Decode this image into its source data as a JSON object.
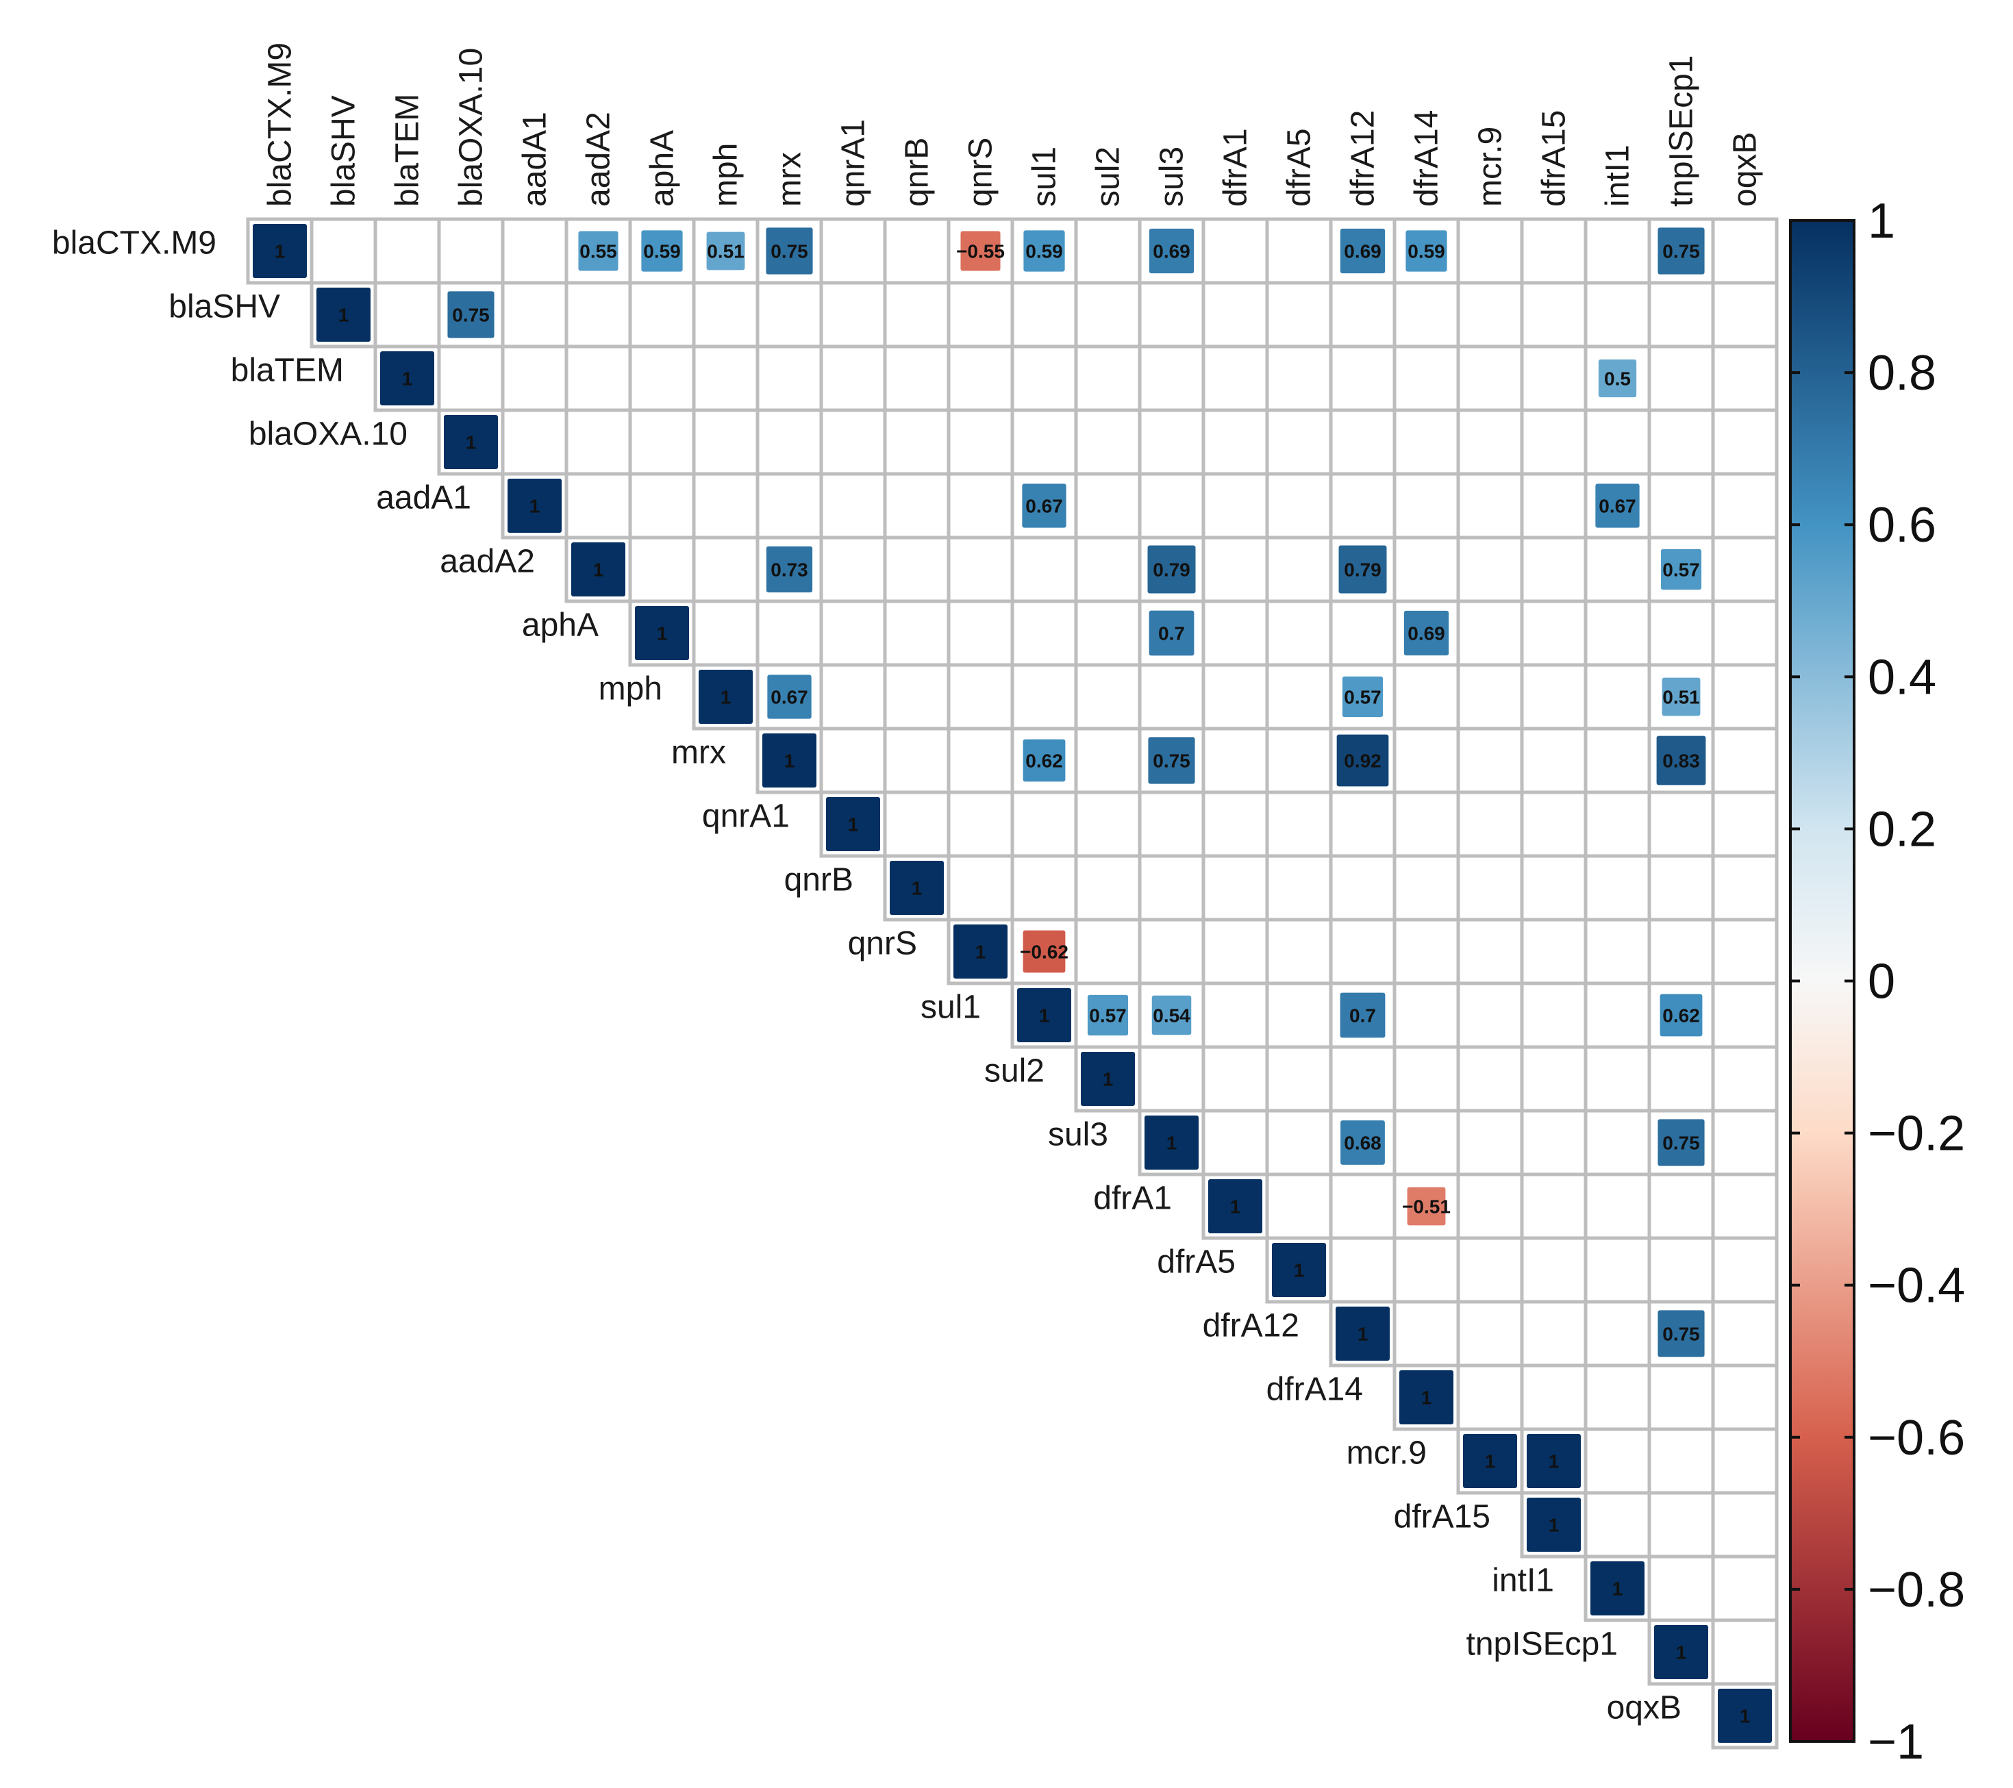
{
  "chart_data": {
    "type": "heatmap",
    "subtype": "correlation-matrix-upper",
    "title": "",
    "labels": [
      "blaCTX.M9",
      "blaSHV",
      "blaTEM",
      "blaOXA.10",
      "aadA1",
      "aadA2",
      "aphA",
      "mph",
      "mrx",
      "qnrA1",
      "qnrB",
      "qnrS",
      "sul1",
      "sul2",
      "sul3",
      "dfrA1",
      "dfrA5",
      "dfrA12",
      "dfrA14",
      "mcr.9",
      "dfrA15",
      "intI1",
      "tnpISEcp1",
      "oqxB"
    ],
    "cells": [
      {
        "row": "blaCTX.M9",
        "col": "blaCTX.M9",
        "value": 1,
        "label": "1"
      },
      {
        "row": "blaCTX.M9",
        "col": "aadA2",
        "value": 0.55,
        "label": "0.55"
      },
      {
        "row": "blaCTX.M9",
        "col": "aphA",
        "value": 0.59,
        "label": "0.59"
      },
      {
        "row": "blaCTX.M9",
        "col": "mph",
        "value": 0.51,
        "label": "0.51"
      },
      {
        "row": "blaCTX.M9",
        "col": "mrx",
        "value": 0.75,
        "label": "0.75"
      },
      {
        "row": "blaCTX.M9",
        "col": "qnrS",
        "value": -0.55,
        "label": "−0.55"
      },
      {
        "row": "blaCTX.M9",
        "col": "sul1",
        "value": 0.59,
        "label": "0.59"
      },
      {
        "row": "blaCTX.M9",
        "col": "sul3",
        "value": 0.69,
        "label": "0.69"
      },
      {
        "row": "blaCTX.M9",
        "col": "dfrA12",
        "value": 0.69,
        "label": "0.69"
      },
      {
        "row": "blaCTX.M9",
        "col": "dfrA14",
        "value": 0.59,
        "label": "0.59"
      },
      {
        "row": "blaCTX.M9",
        "col": "tnpISEcp1",
        "value": 0.75,
        "label": "0.75"
      },
      {
        "row": "blaSHV",
        "col": "blaSHV",
        "value": 1,
        "label": "1"
      },
      {
        "row": "blaSHV",
        "col": "blaOXA.10",
        "value": 0.75,
        "label": "0.75"
      },
      {
        "row": "blaTEM",
        "col": "blaTEM",
        "value": 1,
        "label": "1"
      },
      {
        "row": "blaTEM",
        "col": "intI1",
        "value": 0.5,
        "label": "0.5"
      },
      {
        "row": "blaOXA.10",
        "col": "blaOXA.10",
        "value": 1,
        "label": "1"
      },
      {
        "row": "aadA1",
        "col": "aadA1",
        "value": 1,
        "label": "1"
      },
      {
        "row": "aadA1",
        "col": "sul1",
        "value": 0.67,
        "label": "0.67"
      },
      {
        "row": "aadA1",
        "col": "intI1",
        "value": 0.67,
        "label": "0.67"
      },
      {
        "row": "aadA2",
        "col": "aadA2",
        "value": 1,
        "label": "1"
      },
      {
        "row": "aadA2",
        "col": "mrx",
        "value": 0.73,
        "label": "0.73"
      },
      {
        "row": "aadA2",
        "col": "sul3",
        "value": 0.79,
        "label": "0.79"
      },
      {
        "row": "aadA2",
        "col": "dfrA12",
        "value": 0.79,
        "label": "0.79"
      },
      {
        "row": "aadA2",
        "col": "tnpISEcp1",
        "value": 0.57,
        "label": "0.57"
      },
      {
        "row": "aphA",
        "col": "aphA",
        "value": 1,
        "label": "1"
      },
      {
        "row": "aphA",
        "col": "sul3",
        "value": 0.7,
        "label": "0.7"
      },
      {
        "row": "aphA",
        "col": "dfrA14",
        "value": 0.69,
        "label": "0.69"
      },
      {
        "row": "mph",
        "col": "mph",
        "value": 1,
        "label": "1"
      },
      {
        "row": "mph",
        "col": "mrx",
        "value": 0.67,
        "label": "0.67"
      },
      {
        "row": "mph",
        "col": "dfrA12",
        "value": 0.57,
        "label": "0.57"
      },
      {
        "row": "mph",
        "col": "tnpISEcp1",
        "value": 0.51,
        "label": "0.51"
      },
      {
        "row": "mrx",
        "col": "mrx",
        "value": 1,
        "label": "1"
      },
      {
        "row": "mrx",
        "col": "sul1",
        "value": 0.62,
        "label": "0.62"
      },
      {
        "row": "mrx",
        "col": "sul3",
        "value": 0.75,
        "label": "0.75"
      },
      {
        "row": "mrx",
        "col": "dfrA12",
        "value": 0.92,
        "label": "0.92"
      },
      {
        "row": "mrx",
        "col": "tnpISEcp1",
        "value": 0.83,
        "label": "0.83"
      },
      {
        "row": "qnrA1",
        "col": "qnrA1",
        "value": 1,
        "label": "1"
      },
      {
        "row": "qnrB",
        "col": "qnrB",
        "value": 1,
        "label": "1"
      },
      {
        "row": "qnrS",
        "col": "qnrS",
        "value": 1,
        "label": "1"
      },
      {
        "row": "qnrS",
        "col": "sul1",
        "value": -0.62,
        "label": "−0.62"
      },
      {
        "row": "sul1",
        "col": "sul1",
        "value": 1,
        "label": "1"
      },
      {
        "row": "sul1",
        "col": "sul2",
        "value": 0.57,
        "label": "0.57"
      },
      {
        "row": "sul1",
        "col": "sul3",
        "value": 0.54,
        "label": "0.54"
      },
      {
        "row": "sul1",
        "col": "dfrA12",
        "value": 0.7,
        "label": "0.7"
      },
      {
        "row": "sul1",
        "col": "tnpISEcp1",
        "value": 0.62,
        "label": "0.62"
      },
      {
        "row": "sul2",
        "col": "sul2",
        "value": 1,
        "label": "1"
      },
      {
        "row": "sul3",
        "col": "sul3",
        "value": 1,
        "label": "1"
      },
      {
        "row": "sul3",
        "col": "dfrA12",
        "value": 0.68,
        "label": "0.68"
      },
      {
        "row": "sul3",
        "col": "tnpISEcp1",
        "value": 0.75,
        "label": "0.75"
      },
      {
        "row": "dfrA1",
        "col": "dfrA1",
        "value": 1,
        "label": "1"
      },
      {
        "row": "dfrA1",
        "col": "dfrA14",
        "value": -0.51,
        "label": "−0.51"
      },
      {
        "row": "dfrA5",
        "col": "dfrA5",
        "value": 1,
        "label": "1"
      },
      {
        "row": "dfrA12",
        "col": "dfrA12",
        "value": 1,
        "label": "1"
      },
      {
        "row": "dfrA12",
        "col": "tnpISEcp1",
        "value": 0.75,
        "label": "0.75"
      },
      {
        "row": "dfrA14",
        "col": "dfrA14",
        "value": 1,
        "label": "1"
      },
      {
        "row": "mcr.9",
        "col": "mcr.9",
        "value": 1,
        "label": "1"
      },
      {
        "row": "mcr.9",
        "col": "dfrA15",
        "value": 1,
        "label": "1"
      },
      {
        "row": "dfrA15",
        "col": "dfrA15",
        "value": 1,
        "label": "1"
      },
      {
        "row": "intI1",
        "col": "intI1",
        "value": 1,
        "label": "1"
      },
      {
        "row": "tnpISEcp1",
        "col": "tnpISEcp1",
        "value": 1,
        "label": "1"
      },
      {
        "row": "oqxB",
        "col": "oqxB",
        "value": 1,
        "label": "1"
      }
    ],
    "colorbar": {
      "range": [
        -1,
        1
      ],
      "ticks": [
        1,
        0.8,
        0.6,
        0.4,
        0.2,
        0,
        -0.2,
        -0.4,
        -0.6,
        -0.8,
        -1
      ],
      "tick_labels": [
        "1",
        "0.8",
        "0.6",
        "0.4",
        "0.2",
        "0",
        "−0.2",
        "−0.4",
        "−0.6",
        "−0.8",
        "−1"
      ],
      "colors": {
        "neg_max": "#67001f",
        "neg_mid": "#d6604d",
        "neg_low": "#fddbc7",
        "zero": "#f7f7f7",
        "pos_low": "#d1e5f0",
        "pos_mid": "#4393c3",
        "pos_max": "#053061"
      }
    },
    "colors": {
      "grid": "#bdbdbd",
      "cell_bg": "#ffffff",
      "text": "#111111"
    }
  }
}
